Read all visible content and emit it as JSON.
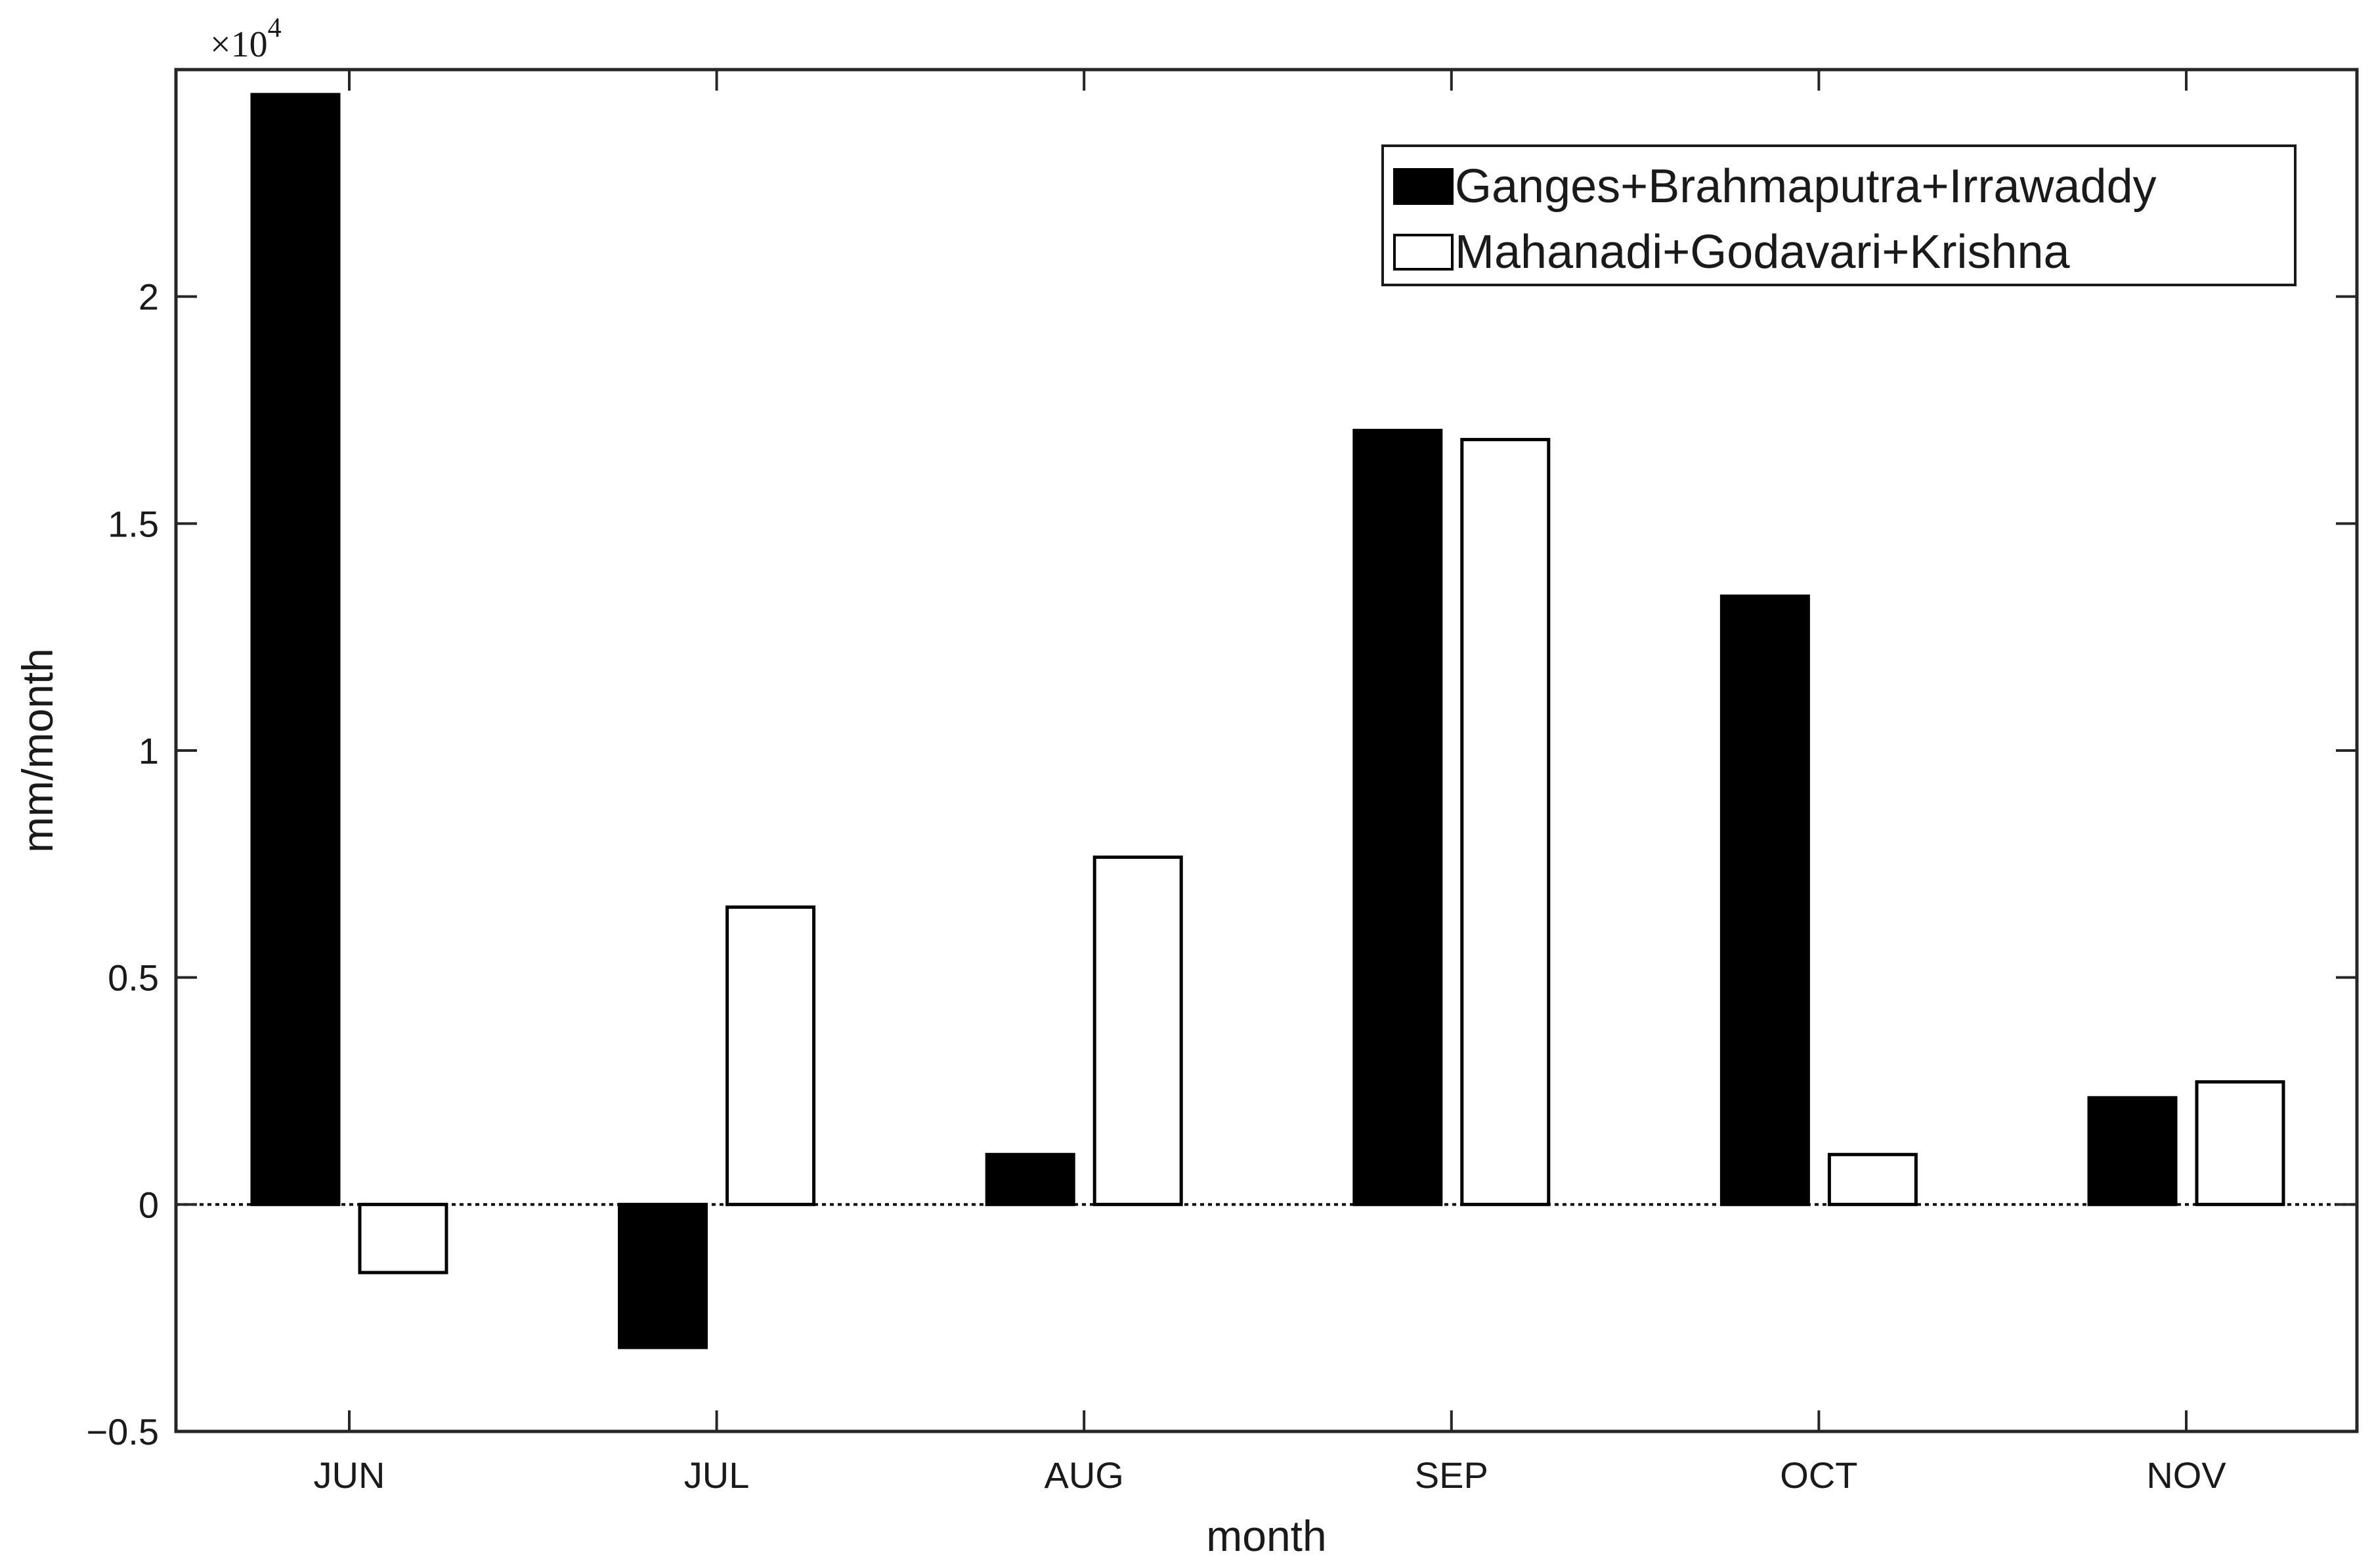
{
  "chart_data": {
    "type": "bar",
    "categories": [
      "JUN",
      "JUL",
      "AUG",
      "SEP",
      "OCT",
      "NOV"
    ],
    "series": [
      {
        "name": "Ganges+Brahmaputra+Irrawaddy",
        "values": [
          24450,
          -3150,
          1100,
          17050,
          13400,
          2350
        ],
        "fill": "#000000"
      },
      {
        "name": "Mahanadi+Godavari+Krishna",
        "values": [
          -1500,
          6550,
          7650,
          16850,
          1100,
          2700
        ],
        "fill": "#ffffff"
      }
    ],
    "xlabel": "month",
    "ylabel": "mm/month",
    "ylim": [
      -5000,
      25000
    ],
    "yticks": [
      -5000,
      0,
      5000,
      10000,
      15000,
      20000
    ],
    "ytick_labels": [
      "−0.5",
      "0",
      "0.5",
      "1",
      "1.5",
      "2"
    ],
    "y_exponent_base": "×10",
    "y_exponent_power": "4",
    "zero_line": "dotted",
    "legend_position": "top-right",
    "grid": false
  }
}
